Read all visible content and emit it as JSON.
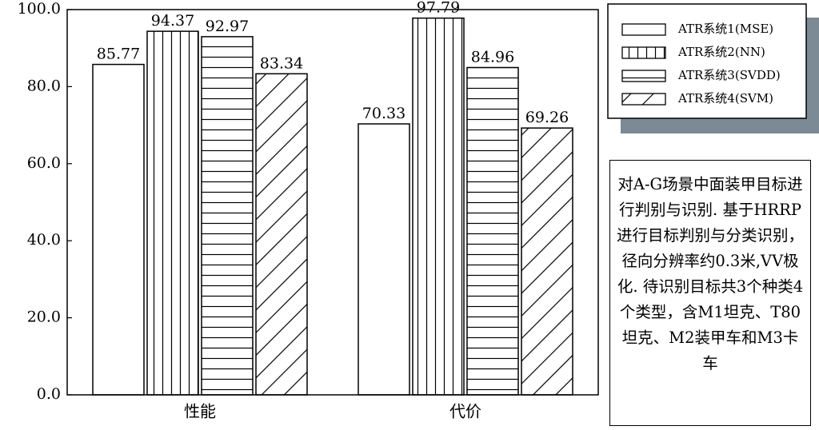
{
  "chart_data": {
    "type": "bar",
    "categories": [
      "性能",
      "代价"
    ],
    "series": [
      {
        "name": "ATR系统1(MSE)",
        "color": "#ffffff",
        "hatch": "none",
        "values": [
          85.77,
          70.33
        ]
      },
      {
        "name": "ATR系统2(NN)",
        "color": "#ffffff",
        "hatch": "vertical",
        "values": [
          94.37,
          97.79
        ]
      },
      {
        "name": "ATR系统3(SVDD)",
        "color": "#ffffff",
        "hatch": "horizontal",
        "values": [
          92.97,
          84.96
        ]
      },
      {
        "name": "ATR系统4(SVM)",
        "color": "#ffffff",
        "hatch": "diagonal",
        "values": [
          83.34,
          69.26
        ]
      }
    ],
    "ylim": [
      0,
      100
    ],
    "yticks": [
      {
        "value": 0,
        "label": "0.0"
      },
      {
        "value": 20,
        "label": "20.0"
      },
      {
        "value": 40,
        "label": "40.0"
      },
      {
        "value": 60,
        "label": "60.0"
      },
      {
        "value": 80,
        "label": "80.0"
      },
      {
        "value": 100,
        "label": "100.0"
      }
    ],
    "legend": "upper right",
    "annotation": "对A-G场景中面装甲目标进行判别与识别. 基于HRRP进行目标判别与分类识别，径向分辨率约0.3米,VV极化. 待识别目标共3个种类4个类型，含M1坦克、T80坦克、M2装甲车和M3卡车"
  }
}
